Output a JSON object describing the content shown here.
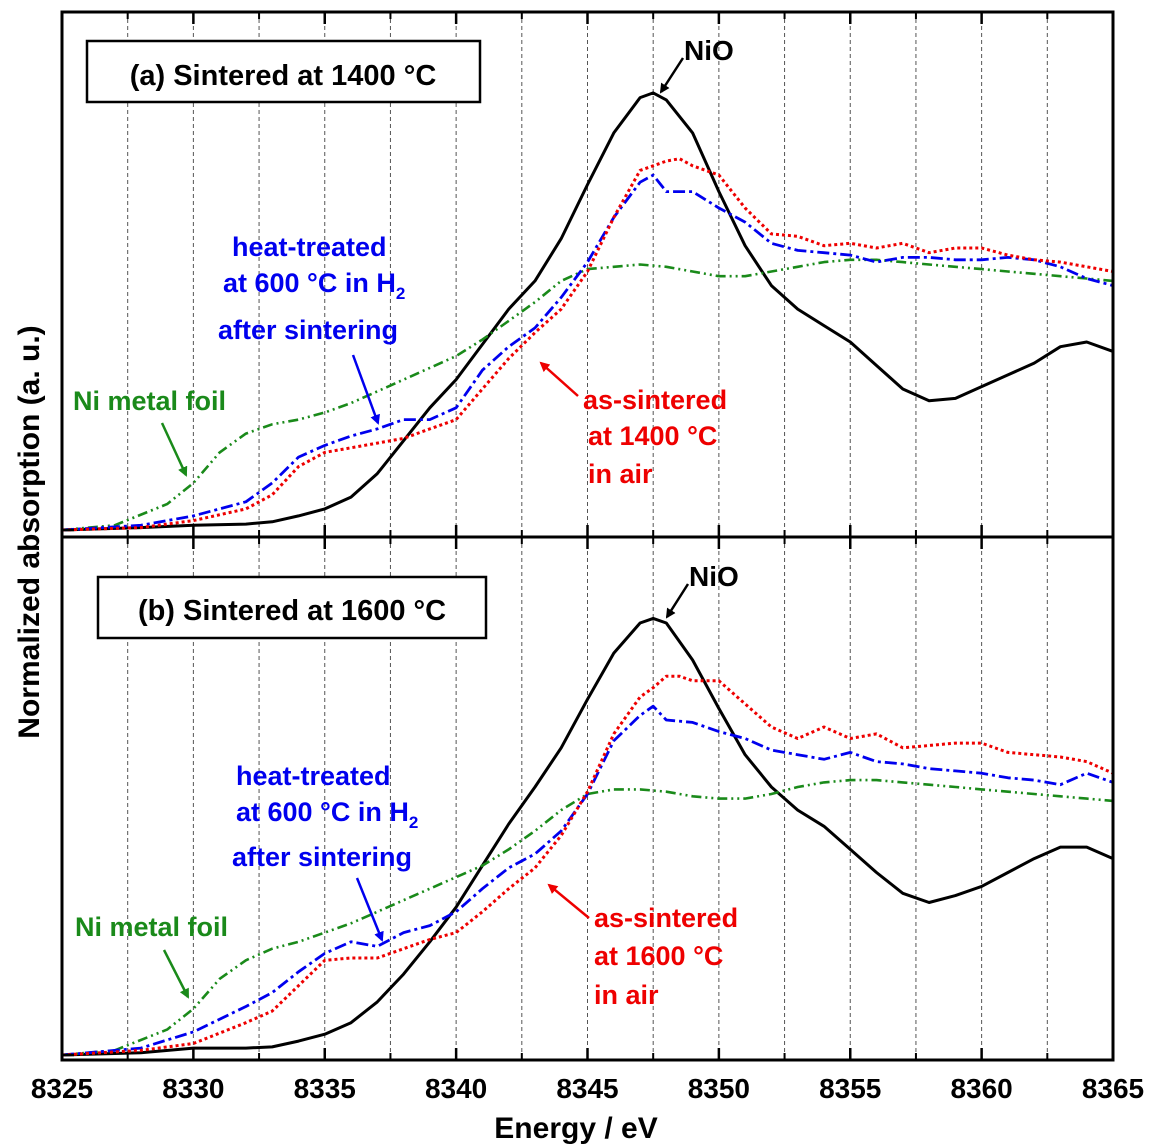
{
  "chart_data": {
    "type": "line",
    "xlabel": "Energy / eV",
    "ylabel": "Normalized absorption (a. u.)",
    "xlim": [
      8325,
      8365
    ],
    "x_ticks": [
      "8325",
      "8330",
      "8335",
      "8340",
      "8345",
      "8350",
      "8355",
      "8360",
      "8365"
    ],
    "grid": "vertical dashed lines every 2.5 eV",
    "colors": {
      "NiO": "#000000",
      "Ni metal foil": "#1a8a1a",
      "heat-treated": "#0000ee",
      "as-sintered": "#ee0000"
    },
    "panels": [
      {
        "title": "(a) Sintered at 1400 °C",
        "annotations": {
          "nio": "NiO",
          "heat_treated": [
            "heat-treated",
            "at 600 °C in H",
            "after sintering"
          ],
          "heat_sub": "2",
          "ni_foil": "Ni metal foil",
          "as_sintered": [
            "as-sintered",
            "at 1400 °C",
            "in air"
          ]
        },
        "series": [
          {
            "name": "NiO",
            "x": [
              8325,
              8328,
              8330,
              8332,
              8333,
              8334,
              8335,
              8336,
              8337,
              8338,
              8339,
              8340,
              8341,
              8342,
              8343,
              8344,
              8345,
              8346,
              8347,
              8347.5,
              8348,
              8349,
              8350,
              8351,
              8352,
              8353,
              8354,
              8355,
              8356,
              8357,
              8358,
              8359,
              8360,
              8361,
              8362,
              8363,
              8364,
              8365
            ],
            "y": [
              0.0,
              0.01,
              0.02,
              0.025,
              0.035,
              0.06,
              0.09,
              0.14,
              0.24,
              0.38,
              0.52,
              0.64,
              0.79,
              0.94,
              1.06,
              1.24,
              1.47,
              1.69,
              1.84,
              1.86,
              1.83,
              1.69,
              1.44,
              1.21,
              1.04,
              0.94,
              0.87,
              0.8,
              0.7,
              0.6,
              0.55,
              0.56,
              0.61,
              0.66,
              0.71,
              0.78,
              0.8,
              0.76
            ]
          },
          {
            "name": "Ni metal foil",
            "x": [
              8325,
              8327,
              8329,
              8330,
              8331,
              8332,
              8333,
              8334,
              8335,
              8336,
              8337,
              8338,
              8339,
              8340,
              8341,
              8342,
              8343,
              8344,
              8345,
              8346,
              8347,
              8348,
              8349,
              8350,
              8351,
              8352,
              8353,
              8354,
              8355,
              8356,
              8357,
              8358,
              8359,
              8360,
              8361,
              8362,
              8363,
              8364,
              8365
            ],
            "y": [
              0.0,
              0.02,
              0.11,
              0.2,
              0.33,
              0.41,
              0.45,
              0.47,
              0.5,
              0.54,
              0.59,
              0.64,
              0.69,
              0.74,
              0.81,
              0.89,
              0.97,
              1.06,
              1.11,
              1.12,
              1.13,
              1.12,
              1.1,
              1.08,
              1.08,
              1.1,
              1.12,
              1.14,
              1.15,
              1.15,
              1.14,
              1.13,
              1.12,
              1.11,
              1.1,
              1.09,
              1.08,
              1.07,
              1.06
            ]
          },
          {
            "name": "heat-treated at 600 °C in H2 after sintering",
            "x": [
              8325,
              8328,
              8330,
              8332,
              8333,
              8334,
              8335,
              8336,
              8337,
              8338,
              8339,
              8340,
              8341,
              8342,
              8343,
              8344,
              8345,
              8346,
              8347,
              8347.5,
              8348,
              8349,
              8350,
              8351,
              8352,
              8353,
              8354,
              8355,
              8356,
              8357,
              8358,
              8359,
              8360,
              8361,
              8362,
              8363,
              8364,
              8365
            ],
            "y": [
              0.0,
              0.02,
              0.06,
              0.12,
              0.2,
              0.31,
              0.36,
              0.4,
              0.43,
              0.47,
              0.47,
              0.52,
              0.68,
              0.78,
              0.86,
              0.99,
              1.14,
              1.33,
              1.48,
              1.51,
              1.44,
              1.44,
              1.37,
              1.31,
              1.22,
              1.19,
              1.18,
              1.17,
              1.14,
              1.16,
              1.16,
              1.15,
              1.15,
              1.16,
              1.15,
              1.12,
              1.07,
              1.04
            ]
          },
          {
            "name": "as-sintered at 1400 °C in air",
            "x": [
              8325,
              8328,
              8330,
              8332,
              8333,
              8334,
              8335,
              8336,
              8337,
              8338,
              8339,
              8340,
              8341,
              8342,
              8343,
              8344,
              8345,
              8346,
              8347,
              8347.5,
              8348,
              8348.5,
              8349,
              8350,
              8351,
              8352,
              8353,
              8354,
              8355,
              8356,
              8357,
              8358,
              8359,
              8360,
              8361,
              8362,
              8363,
              8364,
              8365
            ],
            "y": [
              0.0,
              0.01,
              0.04,
              0.09,
              0.15,
              0.27,
              0.33,
              0.35,
              0.37,
              0.39,
              0.43,
              0.47,
              0.6,
              0.73,
              0.84,
              0.94,
              1.1,
              1.33,
              1.53,
              1.55,
              1.57,
              1.58,
              1.55,
              1.51,
              1.37,
              1.26,
              1.25,
              1.21,
              1.22,
              1.2,
              1.22,
              1.18,
              1.2,
              1.2,
              1.17,
              1.15,
              1.14,
              1.12,
              1.1
            ]
          }
        ]
      },
      {
        "title": "(b) Sintered at 1600 °C",
        "annotations": {
          "nio": "NiO",
          "heat_treated": [
            "heat-treated",
            "at 600 °C in H",
            "after sintering"
          ],
          "heat_sub": "2",
          "ni_foil": "Ni metal foil",
          "as_sintered": [
            "as-sintered",
            "at 1600 °C",
            "in air"
          ]
        },
        "series": [
          {
            "name": "NiO",
            "x": [
              8325,
              8328,
              8330,
              8332,
              8333,
              8334,
              8335,
              8336,
              8337,
              8338,
              8339,
              8340,
              8341,
              8342,
              8343,
              8344,
              8345,
              8346,
              8347,
              8347.5,
              8348,
              8349,
              8350,
              8351,
              8352,
              8353,
              8354,
              8355,
              8356,
              8357,
              8358,
              8359,
              8360,
              8361,
              8362,
              8363,
              8364,
              8365
            ],
            "y": [
              0.0,
              0.01,
              0.03,
              0.03,
              0.035,
              0.06,
              0.09,
              0.14,
              0.23,
              0.35,
              0.49,
              0.64,
              0.82,
              1.0,
              1.16,
              1.33,
              1.54,
              1.74,
              1.87,
              1.89,
              1.87,
              1.71,
              1.5,
              1.3,
              1.16,
              1.06,
              0.99,
              0.89,
              0.79,
              0.7,
              0.66,
              0.69,
              0.73,
              0.79,
              0.85,
              0.9,
              0.9,
              0.85
            ]
          },
          {
            "name": "Ni metal foil",
            "x": [
              8325,
              8327,
              8329,
              8330,
              8331,
              8332,
              8333,
              8334,
              8335,
              8336,
              8337,
              8338,
              8339,
              8340,
              8341,
              8342,
              8343,
              8344,
              8345,
              8346,
              8347,
              8348,
              8349,
              8350,
              8351,
              8352,
              8353,
              8354,
              8355,
              8356,
              8357,
              8358,
              8359,
              8360,
              8361,
              8362,
              8363,
              8364,
              8365
            ],
            "y": [
              0.0,
              0.02,
              0.11,
              0.2,
              0.33,
              0.41,
              0.46,
              0.49,
              0.53,
              0.57,
              0.62,
              0.67,
              0.72,
              0.77,
              0.82,
              0.89,
              0.97,
              1.06,
              1.13,
              1.15,
              1.15,
              1.14,
              1.12,
              1.11,
              1.11,
              1.13,
              1.16,
              1.18,
              1.19,
              1.19,
              1.18,
              1.17,
              1.16,
              1.15,
              1.14,
              1.13,
              1.12,
              1.11,
              1.1
            ]
          },
          {
            "name": "heat-treated at 600 °C in H2 after sintering",
            "x": [
              8325,
              8328,
              8330,
              8332,
              8333,
              8334,
              8335,
              8336,
              8337,
              8338,
              8339,
              8340,
              8341,
              8342,
              8343,
              8344,
              8345,
              8346,
              8347,
              8347.5,
              8348,
              8349,
              8350,
              8351,
              8352,
              8353,
              8354,
              8355,
              8356,
              8357,
              8358,
              8359,
              8360,
              8361,
              8362,
              8363,
              8364,
              8365
            ],
            "y": [
              0.0,
              0.03,
              0.1,
              0.21,
              0.27,
              0.36,
              0.44,
              0.49,
              0.47,
              0.53,
              0.56,
              0.62,
              0.72,
              0.81,
              0.87,
              0.97,
              1.13,
              1.36,
              1.47,
              1.51,
              1.45,
              1.44,
              1.4,
              1.37,
              1.32,
              1.3,
              1.28,
              1.31,
              1.27,
              1.26,
              1.24,
              1.23,
              1.22,
              1.2,
              1.19,
              1.17,
              1.22,
              1.18
            ]
          },
          {
            "name": "as-sintered at 1600 °C in air",
            "x": [
              8325,
              8328,
              8330,
              8332,
              8333,
              8334,
              8335,
              8336,
              8337,
              8338,
              8339,
              8340,
              8341,
              8342,
              8343,
              8344,
              8345,
              8346,
              8347,
              8347.5,
              8348,
              8348.5,
              8349,
              8350,
              8351,
              8352,
              8353,
              8354,
              8355,
              8356,
              8357,
              8358,
              8359,
              8360,
              8361,
              8362,
              8363,
              8364,
              8365
            ],
            "y": [
              0.0,
              0.02,
              0.05,
              0.14,
              0.19,
              0.3,
              0.41,
              0.42,
              0.42,
              0.46,
              0.5,
              0.53,
              0.62,
              0.72,
              0.81,
              0.95,
              1.14,
              1.39,
              1.55,
              1.59,
              1.64,
              1.64,
              1.62,
              1.62,
              1.52,
              1.42,
              1.37,
              1.42,
              1.37,
              1.39,
              1.33,
              1.34,
              1.35,
              1.35,
              1.31,
              1.3,
              1.29,
              1.27,
              1.22
            ]
          }
        ]
      }
    ]
  }
}
